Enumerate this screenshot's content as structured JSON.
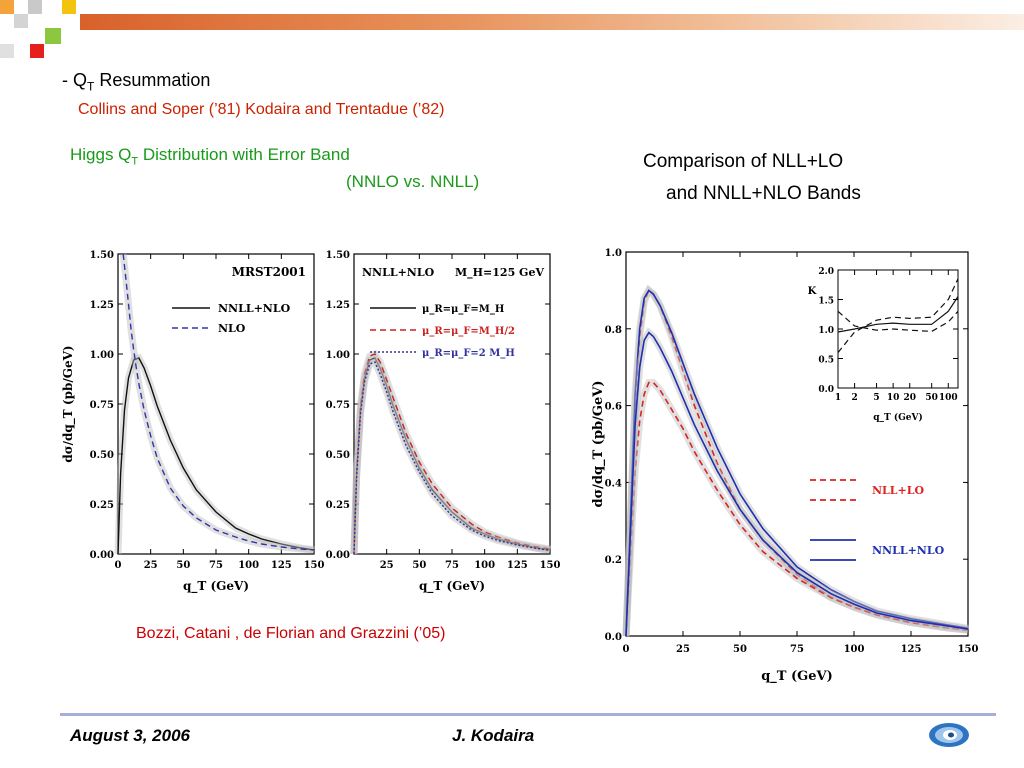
{
  "slide": {
    "heading": {
      "prefix": "- Q",
      "sub": "T",
      "rest": " Resummation"
    },
    "refs": "Collins and Soper (’81)  Kodaira and Trentadue (’82)",
    "higgs": {
      "prefix": "Higgs Q",
      "sub": "T",
      "rest": " Distribution with Error Band"
    },
    "higgs_line2": "(NNLO vs. NNLL)",
    "comparison_line1": "Comparison of NLL+LO",
    "comparison_line2": "and NNLL+NLO Bands",
    "credit": "Bozzi, Catani , de Florian and Grazzini (’05)",
    "footer_date": "August 3, 2006",
    "footer_author": "J. Kodaira",
    "colors": {
      "heading": "#000000",
      "refs": "#cc2200",
      "green": "#1a9a1a",
      "credit": "#cc0000",
      "accent_orange": "#d9612a"
    }
  },
  "chart_data": [
    {
      "type": "line",
      "panel_label": "MRST2001",
      "xlabel": "q_T  (GeV)",
      "ylabel": "dσ/dq_T  (pb/GeV)",
      "xlim": [
        0,
        150
      ],
      "ylim": [
        0,
        1.5
      ],
      "xticks": [
        "0",
        "25",
        "50",
        "75",
        "100",
        "125",
        "150"
      ],
      "yticks": [
        "0.00",
        "0.25",
        "0.50",
        "0.75",
        "1.00",
        "1.25",
        "1.50"
      ],
      "legend_position": "top-right",
      "series": [
        {
          "name": "NNLL+NLO",
          "style": "solid",
          "color": "#111111",
          "x": [
            0,
            2,
            5,
            8,
            12,
            16,
            20,
            25,
            30,
            40,
            50,
            60,
            75,
            90,
            100,
            110,
            125,
            140,
            150
          ],
          "y": [
            0,
            0.4,
            0.72,
            0.88,
            0.97,
            0.98,
            0.93,
            0.84,
            0.74,
            0.57,
            0.43,
            0.32,
            0.21,
            0.13,
            0.1,
            0.075,
            0.05,
            0.03,
            0.02
          ]
        },
        {
          "name": "NLO",
          "style": "dashed",
          "color": "#3333aa",
          "x": [
            4,
            6,
            8,
            10,
            12,
            14,
            16,
            20,
            25,
            30,
            40,
            50,
            60,
            75,
            90,
            100,
            110,
            125,
            140,
            150
          ],
          "y": [
            1.5,
            1.38,
            1.25,
            1.12,
            1.02,
            0.93,
            0.85,
            0.72,
            0.59,
            0.48,
            0.33,
            0.24,
            0.18,
            0.12,
            0.085,
            0.065,
            0.05,
            0.035,
            0.025,
            0.02
          ]
        }
      ]
    },
    {
      "type": "line",
      "panel_label": "NNLL+NLO",
      "panel_label2": "M_H=125 GeV",
      "xlabel": "q_T  (GeV)",
      "xlim": [
        0,
        150
      ],
      "ylim": [
        0,
        1.5
      ],
      "xticks": [
        "25",
        "50",
        "75",
        "100",
        "125",
        "150"
      ],
      "yticks": [
        "0.00",
        "0.25",
        "0.50",
        "0.75",
        "1.00",
        "1.25",
        "1.50"
      ],
      "legend_position": "top-right",
      "series": [
        {
          "name": "μ_R=μ_F=M_H",
          "style": "solid",
          "color": "#111111",
          "x": [
            0,
            2,
            5,
            8,
            12,
            16,
            20,
            25,
            30,
            40,
            50,
            60,
            75,
            90,
            100,
            110,
            125,
            140,
            150
          ],
          "y": [
            0,
            0.4,
            0.72,
            0.88,
            0.97,
            0.98,
            0.93,
            0.84,
            0.74,
            0.57,
            0.43,
            0.32,
            0.21,
            0.13,
            0.1,
            0.075,
            0.05,
            0.03,
            0.02
          ]
        },
        {
          "name": "μ_R=μ_F=M_H/2",
          "style": "dashed",
          "color": "#cc2222",
          "x": [
            0,
            2,
            5,
            8,
            12,
            16,
            20,
            25,
            30,
            40,
            50,
            60,
            75,
            90,
            100,
            110,
            125,
            140,
            150
          ],
          "y": [
            0,
            0.42,
            0.74,
            0.9,
            0.99,
            1.0,
            0.96,
            0.87,
            0.78,
            0.6,
            0.46,
            0.35,
            0.23,
            0.15,
            0.11,
            0.085,
            0.055,
            0.035,
            0.025
          ]
        },
        {
          "name": "μ_R=μ_F=2 M_H",
          "style": "dotted",
          "color": "#333399",
          "x": [
            0,
            2,
            5,
            8,
            12,
            16,
            20,
            25,
            30,
            40,
            50,
            60,
            75,
            90,
            100,
            110,
            125,
            140,
            150
          ],
          "y": [
            0,
            0.38,
            0.7,
            0.86,
            0.95,
            0.96,
            0.9,
            0.81,
            0.71,
            0.54,
            0.41,
            0.3,
            0.19,
            0.12,
            0.09,
            0.068,
            0.045,
            0.028,
            0.018
          ]
        }
      ]
    },
    {
      "type": "line",
      "xlabel": "q_T  (GeV)",
      "ylabel": "dσ/dq_T  (pb/GeV)",
      "xlim": [
        0,
        150
      ],
      "ylim": [
        0,
        1.0
      ],
      "xticks": [
        "0",
        "25",
        "50",
        "75",
        "100",
        "125",
        "150"
      ],
      "yticks": [
        "0.0",
        "0.2",
        "0.4",
        "0.6",
        "0.8",
        "1.0"
      ],
      "legend_position": "bottom-right",
      "series": [
        {
          "name": "NLL+LO",
          "style": "dashed",
          "color": "#dd2222",
          "x": [
            0,
            2,
            4,
            6,
            8,
            10,
            12,
            15,
            20,
            25,
            30,
            40,
            50,
            60,
            75,
            90,
            100,
            110,
            125,
            140,
            150
          ],
          "y": [
            0,
            0.3,
            0.6,
            0.78,
            0.87,
            0.9,
            0.89,
            0.86,
            0.78,
            0.69,
            0.6,
            0.45,
            0.33,
            0.25,
            0.16,
            0.1,
            0.075,
            0.055,
            0.035,
            0.022,
            0.015
          ]
        },
        {
          "name": "NLL+LO",
          "style": "dashed",
          "color": "#dd2222",
          "x": [
            0,
            2,
            4,
            6,
            8,
            10,
            12,
            15,
            20,
            25,
            30,
            40,
            50,
            60,
            75,
            90,
            100,
            110,
            125,
            140,
            150
          ],
          "y": [
            0,
            0.22,
            0.43,
            0.56,
            0.63,
            0.66,
            0.66,
            0.64,
            0.59,
            0.54,
            0.48,
            0.38,
            0.29,
            0.22,
            0.15,
            0.1,
            0.075,
            0.055,
            0.035,
            0.022,
            0.015
          ]
        },
        {
          "name": "NNLL+NLO",
          "style": "solid",
          "color": "#1f2fb0",
          "x": [
            0,
            2,
            4,
            6,
            8,
            10,
            12,
            15,
            20,
            25,
            30,
            40,
            50,
            60,
            75,
            90,
            100,
            110,
            125,
            140,
            150
          ],
          "y": [
            0,
            0.32,
            0.63,
            0.8,
            0.88,
            0.9,
            0.89,
            0.86,
            0.79,
            0.71,
            0.63,
            0.49,
            0.37,
            0.28,
            0.18,
            0.12,
            0.09,
            0.065,
            0.045,
            0.03,
            0.02
          ]
        },
        {
          "name": "NNLL+NLO",
          "style": "solid",
          "color": "#1f2fb0",
          "x": [
            0,
            2,
            4,
            6,
            8,
            10,
            12,
            15,
            20,
            25,
            30,
            40,
            50,
            60,
            75,
            90,
            100,
            110,
            125,
            140,
            150
          ],
          "y": [
            0,
            0.28,
            0.55,
            0.7,
            0.77,
            0.79,
            0.78,
            0.75,
            0.69,
            0.62,
            0.55,
            0.43,
            0.33,
            0.25,
            0.165,
            0.11,
            0.083,
            0.06,
            0.04,
            0.027,
            0.018
          ]
        }
      ],
      "inset": {
        "type": "line",
        "xlabel": "q_T (GeV)",
        "ylabel": "K",
        "xscale": "log",
        "xlim": [
          1,
          150
        ],
        "ylim": [
          0,
          2.0
        ],
        "xticks": [
          "1",
          "2",
          "5",
          "10",
          "20",
          "50",
          "100"
        ],
        "yticks": [
          "0.0",
          "0.5",
          "1.0",
          "1.5",
          "2.0"
        ],
        "series": [
          {
            "style": "solid",
            "color": "#111111",
            "x": [
              1,
              2,
              5,
              10,
              20,
              50,
              100,
              150
            ],
            "y": [
              0.95,
              1.0,
              1.08,
              1.1,
              1.08,
              1.08,
              1.3,
              1.55
            ]
          },
          {
            "style": "dashed",
            "color": "#111111",
            "x": [
              1,
              2,
              5,
              10,
              20,
              50,
              100,
              150
            ],
            "y": [
              0.6,
              0.95,
              1.15,
              1.2,
              1.18,
              1.2,
              1.5,
              1.85
            ]
          },
          {
            "style": "dashed",
            "color": "#111111",
            "x": [
              1,
              2,
              5,
              10,
              20,
              50,
              100,
              150
            ],
            "y": [
              1.3,
              1.05,
              0.98,
              1.0,
              0.98,
              0.96,
              1.12,
              1.3
            ]
          }
        ]
      }
    }
  ]
}
